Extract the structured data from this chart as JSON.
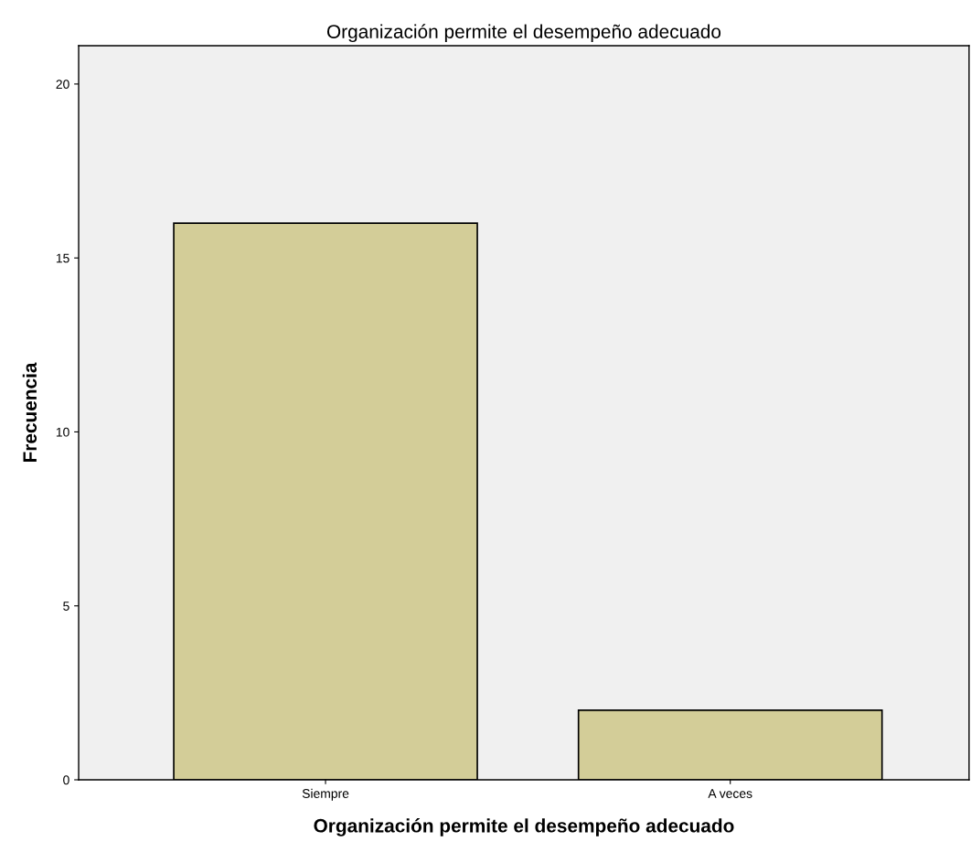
{
  "chart_data": {
    "type": "bar",
    "title": "Organización permite el desempeño adecuado",
    "xlabel": "Organización permite el desempeño adecuado",
    "ylabel": "Frecuencia",
    "categories": [
      "Siempre",
      "A veces"
    ],
    "values": [
      16,
      2
    ],
    "color": "#d3cd98",
    "ylim": [
      0,
      21.1
    ],
    "yticks": [
      0,
      5,
      10,
      15,
      20
    ],
    "grid": false,
    "legend": false
  }
}
